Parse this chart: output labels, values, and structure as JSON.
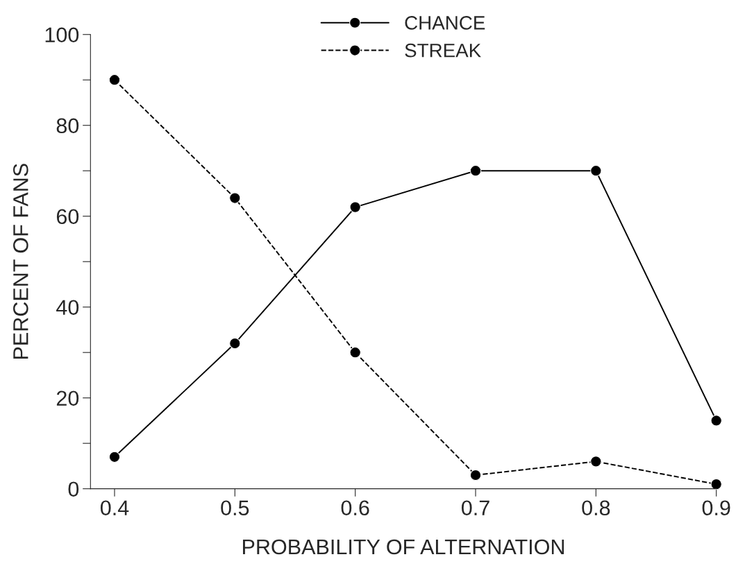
{
  "chart_data": {
    "type": "line",
    "xlabel": "PROBABILITY OF ALTERNATION",
    "ylabel": "PERCENT OF FANS",
    "x": [
      0.4,
      0.5,
      0.6,
      0.7,
      0.8,
      0.9
    ],
    "series": [
      {
        "name": "CHANCE",
        "color": "#000000",
        "line_style": "solid",
        "values": [
          7,
          32,
          62,
          70,
          70,
          15
        ]
      },
      {
        "name": "STREAK",
        "color": "#000000",
        "line_style": "dashed",
        "values": [
          90,
          64,
          30,
          3,
          6,
          1
        ]
      }
    ],
    "marker": "circle",
    "legend": "top",
    "grid": false,
    "xlim": [
      0.38,
      0.9
    ],
    "xticks": [
      0.4,
      0.5,
      0.6,
      0.7,
      0.8,
      0.9
    ],
    "ylim": [
      0,
      100
    ],
    "yticks": [
      0,
      {
        "value": 10,
        "label": null
      },
      20,
      {
        "value": 30,
        "label": null
      },
      40,
      {
        "value": 50,
        "label": null
      },
      60,
      {
        "value": 70,
        "label": null
      },
      80,
      {
        "value": 90,
        "label": null
      },
      100
    ]
  }
}
